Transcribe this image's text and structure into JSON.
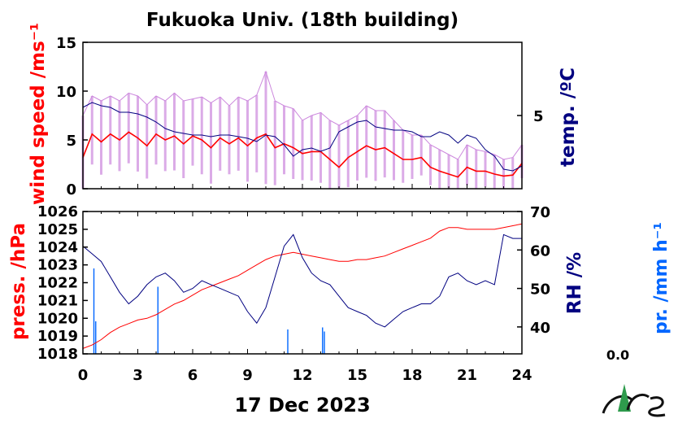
{
  "chart_data": [
    {
      "type": "line",
      "title": "Fukuoka Univ. (18th building)",
      "xlabel": "17 Dec 2023",
      "xticks": [
        0,
        3,
        6,
        9,
        12,
        15,
        18,
        21,
        24
      ],
      "left_axis": {
        "label": "wind speed /ms⁻¹",
        "ylim": [
          0,
          15
        ],
        "ticks": [
          0,
          5,
          10,
          15
        ],
        "color": "#ff0000"
      },
      "right_axis": {
        "label": "temp. /ºC",
        "ticks": [
          5
        ],
        "ylim": [
          0.5,
          9.5
        ],
        "color": "#000080"
      },
      "series": [
        {
          "name": "wind speed (mean)",
          "axis": "left",
          "color": "#ff0000",
          "x": [
            0,
            0.5,
            1,
            1.5,
            2,
            2.5,
            3,
            3.5,
            4,
            4.5,
            5,
            5.5,
            6,
            6.5,
            7,
            7.5,
            8,
            8.5,
            9,
            9.5,
            10,
            10.5,
            11,
            11.5,
            12,
            12.5,
            13,
            13.5,
            14,
            14.5,
            15,
            15.5,
            16,
            16.5,
            17,
            17.5,
            18,
            18.5,
            19,
            19.5,
            20,
            20.5,
            21,
            21.5,
            22,
            22.5,
            23,
            23.5,
            24
          ],
          "y": [
            3.2,
            5.6,
            4.8,
            5.6,
            5.0,
            5.8,
            5.2,
            4.4,
            5.6,
            5.0,
            5.4,
            4.6,
            5.4,
            5.0,
            4.2,
            5.2,
            4.6,
            5.2,
            4.4,
            5.2,
            5.6,
            4.2,
            4.6,
            4.2,
            3.6,
            3.8,
            3.8,
            3.0,
            2.2,
            3.2,
            3.8,
            4.4,
            4.0,
            4.2,
            3.6,
            3.0,
            3.0,
            3.2,
            2.2,
            1.8,
            1.5,
            1.2,
            2.2,
            1.8,
            1.8,
            1.5,
            1.3,
            1.4,
            2.6
          ]
        },
        {
          "name": "wind speed (gust range)",
          "axis": "left",
          "color": "#cc88dd",
          "x": [
            0,
            0.5,
            1,
            1.5,
            2,
            2.5,
            3,
            3.5,
            4,
            4.5,
            5,
            5.5,
            6,
            6.5,
            7,
            7.5,
            8,
            8.5,
            9,
            9.5,
            10,
            10.5,
            11,
            11.5,
            12,
            12.5,
            13,
            13.5,
            14,
            14.5,
            15,
            15.5,
            16,
            16.5,
            17,
            17.5,
            18,
            18.5,
            19,
            19.5,
            20,
            20.5,
            21,
            21.5,
            22,
            22.5,
            23,
            23.5,
            24
          ],
          "y": [
            7.5,
            9.5,
            9.0,
            9.5,
            9.0,
            9.8,
            9.5,
            8.6,
            9.5,
            9.0,
            9.8,
            9.0,
            9.2,
            9.4,
            8.8,
            9.4,
            8.5,
            9.4,
            9.0,
            9.6,
            12.0,
            9.0,
            8.5,
            8.2,
            7.0,
            7.5,
            7.8,
            7.0,
            6.5,
            7.0,
            7.5,
            8.5,
            8.0,
            8.0,
            7.0,
            6.0,
            5.5,
            5.5,
            4.5,
            4.0,
            3.5,
            3.0,
            4.5,
            4.0,
            3.8,
            3.5,
            3.0,
            3.2,
            4.5
          ]
        },
        {
          "name": "temperature",
          "axis": "right",
          "color": "#000080",
          "x": [
            0,
            0.5,
            1,
            1.5,
            2,
            2.5,
            3,
            3.5,
            4,
            4.5,
            5,
            5.5,
            6,
            6.5,
            7,
            7.5,
            8,
            8.5,
            9,
            9.5,
            10,
            10.5,
            11,
            11.5,
            12,
            12.5,
            13,
            13.5,
            14,
            14.5,
            15,
            15.5,
            16,
            16.5,
            17,
            17.5,
            18,
            18.5,
            19,
            19.5,
            20,
            20.5,
            21,
            21.5,
            22,
            22.5,
            23,
            23.5,
            24
          ],
          "y": [
            5.5,
            5.8,
            5.6,
            5.5,
            5.2,
            5.2,
            5.1,
            4.9,
            4.6,
            4.2,
            4.0,
            3.9,
            3.8,
            3.8,
            3.7,
            3.8,
            3.8,
            3.7,
            3.6,
            3.4,
            3.8,
            3.7,
            3.2,
            2.5,
            2.9,
            3.0,
            2.8,
            3.0,
            4.0,
            4.3,
            4.6,
            4.7,
            4.3,
            4.2,
            4.1,
            4.1,
            4.0,
            3.7,
            3.7,
            4.0,
            3.8,
            3.3,
            3.8,
            3.6,
            2.9,
            2.5,
            1.7,
            1.6,
            1.9
          ]
        }
      ]
    },
    {
      "type": "line",
      "xlabel": "17 Dec 2023",
      "xticks": [
        0,
        3,
        6,
        9,
        12,
        15,
        18,
        21,
        24
      ],
      "left_axis": {
        "label": "press. /hPa",
        "ylim": [
          1018,
          1026
        ],
        "ticks": [
          1018,
          1019,
          1020,
          1021,
          1022,
          1023,
          1024,
          1025,
          1026
        ],
        "color": "#ff0000"
      },
      "right_axis": {
        "label": "RH /%",
        "ylim": [
          33,
          70
        ],
        "ticks": [
          40,
          50,
          60,
          70
        ],
        "color": "#000080"
      },
      "precip_axis": {
        "label": "pr. /mm h⁻¹",
        "value_label": "0.0",
        "color": "#0066ff"
      },
      "series": [
        {
          "name": "pressure",
          "axis": "left",
          "color": "#ff0000",
          "x": [
            0,
            0.5,
            1,
            1.5,
            2,
            2.5,
            3,
            3.5,
            4,
            4.5,
            5,
            5.5,
            6,
            6.5,
            7,
            7.5,
            8,
            8.5,
            9,
            9.5,
            10,
            10.5,
            11,
            11.5,
            12,
            12.5,
            13,
            13.5,
            14,
            14.5,
            15,
            15.5,
            16,
            16.5,
            17,
            17.5,
            18,
            18.5,
            19,
            19.5,
            20,
            20.5,
            21,
            21.5,
            22,
            22.5,
            23,
            23.5,
            24
          ],
          "y": [
            1018.3,
            1018.5,
            1018.8,
            1019.2,
            1019.5,
            1019.7,
            1019.9,
            1020.0,
            1020.2,
            1020.5,
            1020.8,
            1021.0,
            1021.3,
            1021.6,
            1021.8,
            1022.0,
            1022.2,
            1022.4,
            1022.7,
            1023.0,
            1023.3,
            1023.5,
            1023.6,
            1023.7,
            1023.6,
            1023.5,
            1023.4,
            1023.3,
            1023.2,
            1023.2,
            1023.3,
            1023.3,
            1023.4,
            1023.5,
            1023.7,
            1023.9,
            1024.1,
            1024.3,
            1024.5,
            1024.9,
            1025.1,
            1025.1,
            1025.0,
            1025.0,
            1025.0,
            1025.0,
            1025.1,
            1025.2,
            1025.3
          ]
        },
        {
          "name": "relative humidity",
          "axis": "right",
          "color": "#000080",
          "x": [
            0,
            0.5,
            1,
            1.5,
            2,
            2.5,
            3,
            3.5,
            4,
            4.5,
            5,
            5.5,
            6,
            6.5,
            7,
            7.5,
            8,
            8.5,
            9,
            9.5,
            10,
            10.5,
            11,
            11.5,
            12,
            12.5,
            13,
            13.5,
            14,
            14.5,
            15,
            15.5,
            16,
            16.5,
            17,
            17.5,
            18,
            18.5,
            19,
            19.5,
            20,
            20.5,
            21,
            21.5,
            22,
            22.5,
            23,
            23.5,
            24
          ],
          "y": [
            61,
            59,
            57,
            53,
            49,
            46,
            48,
            51,
            53,
            54,
            52,
            49,
            50,
            52,
            51,
            50,
            49,
            48,
            44,
            41,
            45,
            53,
            61,
            64,
            58,
            54,
            52,
            51,
            48,
            45,
            44,
            43,
            41,
            40,
            42,
            44,
            45,
            46,
            46,
            48,
            53,
            54,
            52,
            51,
            52,
            51,
            64,
            63,
            63
          ]
        },
        {
          "name": "precipitation",
          "axis": "precip",
          "color": "#0066ff",
          "x": [
            0.6,
            0.7,
            4.1,
            11.2,
            13.1,
            13.2
          ],
          "y": [
            4.2,
            1.6,
            3.3,
            1.2,
            1.3,
            1.1
          ]
        }
      ]
    }
  ]
}
